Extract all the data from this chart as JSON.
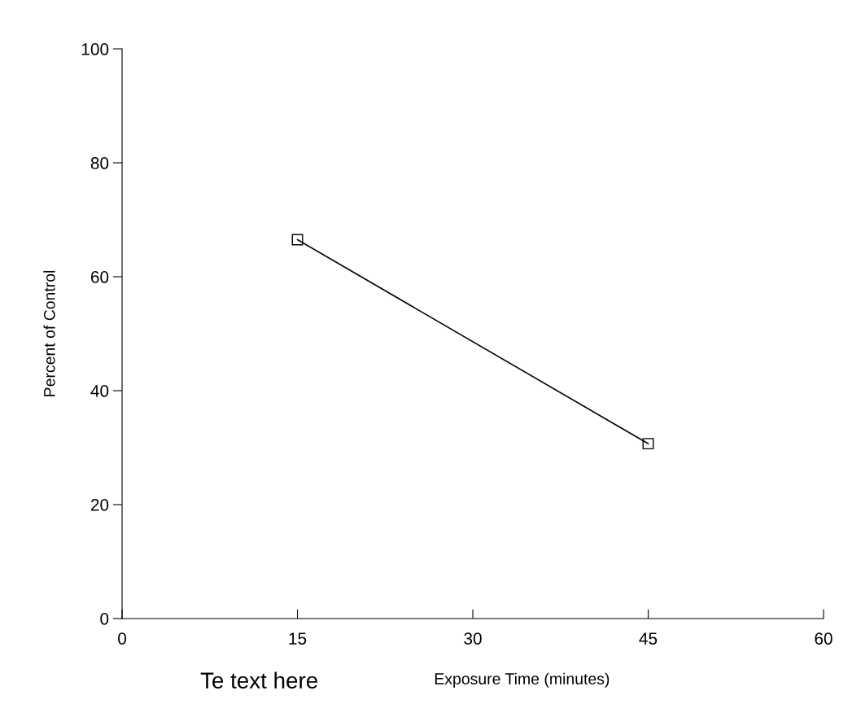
{
  "chart_data": {
    "type": "line",
    "xlabel": "Exposure Time (minutes)",
    "ylabel": "Percent of Control",
    "annotations": [
      "Te text here"
    ],
    "x": [
      15,
      45
    ],
    "series": [
      {
        "color": "#000000",
        "values": [
          66.5,
          30.7
        ]
      }
    ],
    "xlim": [
      0,
      60
    ],
    "xticks": [
      0,
      15,
      30,
      45,
      60
    ],
    "ylim": [
      0,
      100
    ],
    "yticks": [
      0,
      20,
      40,
      60,
      80,
      100
    ],
    "marker": "square",
    "line_style": "solid",
    "grid": false,
    "legend": false
  }
}
